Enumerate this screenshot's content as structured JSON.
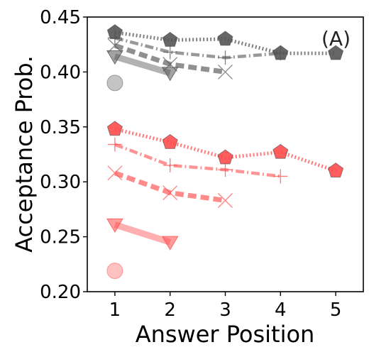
{
  "chart_data": {
    "type": "line",
    "title": "",
    "panel_label": "(A)",
    "xlabel": "Answer Position",
    "ylabel": "Acceptance Prob.",
    "xlim": [
      0.5,
      5.5
    ],
    "ylim": [
      0.2,
      0.45
    ],
    "xticks": [
      {
        "value": 1,
        "label": "1"
      },
      {
        "value": 2,
        "label": "2"
      },
      {
        "value": 3,
        "label": "3"
      },
      {
        "value": 4,
        "label": "4"
      },
      {
        "value": 5,
        "label": "5"
      }
    ],
    "yticks": [
      {
        "value": 0.2,
        "label": "0.20"
      },
      {
        "value": 0.25,
        "label": "0.25"
      },
      {
        "value": 0.3,
        "label": "0.30"
      },
      {
        "value": 0.35,
        "label": "0.35"
      },
      {
        "value": 0.4,
        "label": "0.40"
      },
      {
        "value": 0.45,
        "label": "0.45"
      }
    ],
    "grid": false,
    "legend": "none",
    "colors": {
      "gray": "#555555",
      "red": "#ff4d4d"
    },
    "series": [
      {
        "color": "gray",
        "marker": "pentagon",
        "style": "dotted",
        "x": [
          1,
          2,
          3,
          4,
          5
        ],
        "y": [
          0.436,
          0.429,
          0.43,
          0.417,
          0.417
        ]
      },
      {
        "color": "gray",
        "marker": "plus",
        "style": "dashdot",
        "x": [
          1,
          2,
          3,
          4
        ],
        "y": [
          0.431,
          0.418,
          0.413,
          0.417
        ]
      },
      {
        "color": "gray",
        "marker": "x",
        "style": "dashed",
        "x": [
          1,
          2,
          3
        ],
        "y": [
          0.424,
          0.407,
          0.4
        ]
      },
      {
        "color": "gray",
        "marker": "triangle-down",
        "style": "solid",
        "x": [
          1,
          2
        ],
        "y": [
          0.414,
          0.399
        ]
      },
      {
        "color": "gray",
        "marker": "circle",
        "style": "none",
        "x": [
          1
        ],
        "y": [
          0.39
        ]
      },
      {
        "color": "red",
        "marker": "pentagon",
        "style": "dotted",
        "x": [
          1,
          2,
          3,
          4,
          5
        ],
        "y": [
          0.348,
          0.336,
          0.322,
          0.327,
          0.31
        ]
      },
      {
        "color": "red",
        "marker": "plus",
        "style": "dashdot",
        "x": [
          1,
          2,
          3,
          4
        ],
        "y": [
          0.334,
          0.315,
          0.311,
          0.305
        ]
      },
      {
        "color": "red",
        "marker": "x",
        "style": "dashed",
        "x": [
          1,
          2,
          3
        ],
        "y": [
          0.308,
          0.29,
          0.283
        ]
      },
      {
        "color": "red",
        "marker": "triangle-down",
        "style": "solid",
        "x": [
          1,
          2
        ],
        "y": [
          0.261,
          0.245
        ]
      },
      {
        "color": "red",
        "marker": "circle",
        "style": "none",
        "x": [
          1
        ],
        "y": [
          0.219
        ]
      }
    ]
  }
}
